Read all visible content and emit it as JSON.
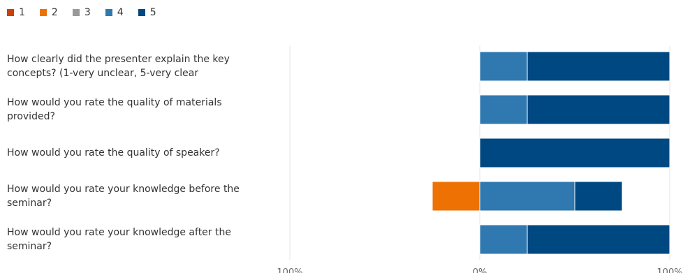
{
  "legend": [
    {
      "label": "1",
      "color": "#c8410a"
    },
    {
      "label": "2",
      "color": "#ee7203"
    },
    {
      "label": "3",
      "color": "#999999"
    },
    {
      "label": "4",
      "color": "#2f78b0"
    },
    {
      "label": "5",
      "color": "#004882"
    }
  ],
  "chart_data": {
    "type": "bar",
    "orientation": "horizontal",
    "stacking": "diverging",
    "categories": [
      "How clearly did the presenter explain the key concepts? (1-very unclear, 5-very clear",
      "How would you rate the quality of materials provided?",
      "How would you rate the quality of speaker?",
      "How would you rate your knowledge before the seminar?",
      "How would you rate your knowledge after the seminar?"
    ],
    "series": [
      {
        "name": "1",
        "color": "#c8410a",
        "values": [
          0,
          0,
          0,
          0,
          0
        ]
      },
      {
        "name": "2",
        "color": "#ee7203",
        "values": [
          0,
          0,
          0,
          -25,
          0
        ]
      },
      {
        "name": "3",
        "color": "#999999",
        "values": [
          0,
          0,
          0,
          0,
          0
        ]
      },
      {
        "name": "4",
        "color": "#2f78b0",
        "values": [
          25,
          25,
          0,
          50,
          25
        ]
      },
      {
        "name": "5",
        "color": "#004882",
        "values": [
          75,
          75,
          100,
          25,
          75
        ]
      }
    ],
    "xlim": [
      -100,
      100
    ],
    "xticks": [
      "100%",
      "0%",
      "100%"
    ],
    "legend_position": "top-left",
    "grid": false
  }
}
